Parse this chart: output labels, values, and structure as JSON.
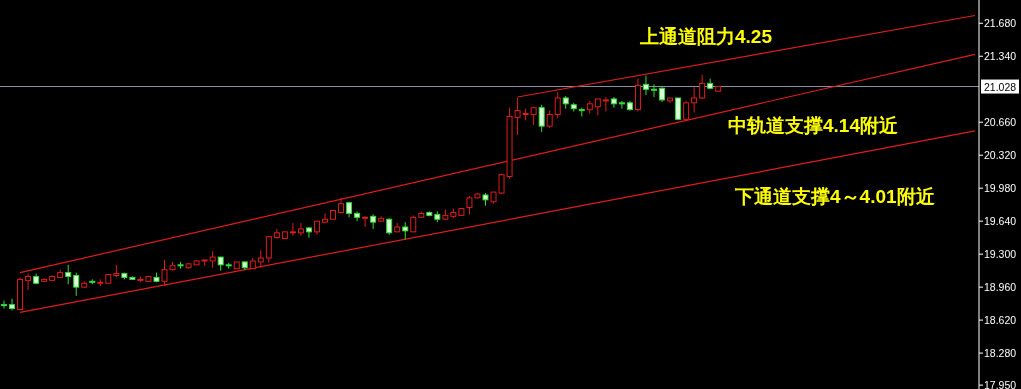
{
  "chart_data": {
    "type": "candlestick",
    "categories": [
      null,
      null,
      null,
      null,
      null,
      null,
      null,
      null,
      null,
      null,
      null,
      null,
      null,
      null,
      null,
      null,
      null,
      null,
      null,
      null,
      null,
      null,
      null,
      null,
      null,
      null,
      null,
      null,
      null,
      null,
      null,
      null,
      null,
      null,
      null,
      null,
      null,
      null,
      null,
      null,
      null,
      null,
      null,
      null,
      null,
      null,
      null,
      null,
      null,
      null,
      null,
      null,
      null,
      null,
      null,
      null,
      null,
      null,
      null,
      null,
      null,
      null,
      null,
      null,
      null,
      null,
      null,
      null,
      null,
      null,
      null,
      null,
      null,
      null,
      null,
      null,
      null,
      null,
      null,
      null,
      null,
      null,
      null,
      null,
      null,
      null,
      null,
      null,
      null,
      null,
      null,
      null,
      null,
      null,
      null,
      null,
      null,
      null,
      null,
      null,
      null,
      null,
      null,
      null,
      null,
      null,
      null,
      null,
      null,
      null,
      null,
      null,
      null,
      null,
      null,
      null,
      null,
      null,
      null,
      null,
      null,
      null
    ],
    "ohlc": [
      [
        18.78,
        18.82,
        18.74,
        18.77
      ],
      [
        18.78,
        18.84,
        18.72,
        18.74
      ],
      [
        18.73,
        19.06,
        18.72,
        19.04
      ],
      [
        19.03,
        19.1,
        18.93,
        19.07
      ],
      [
        19.07,
        19.1,
        18.99,
        19.0
      ],
      [
        19.02,
        19.05,
        19.01,
        19.04
      ],
      [
        19.03,
        19.08,
        19.03,
        19.07
      ],
      [
        19.06,
        19.14,
        19.06,
        19.11
      ],
      [
        19.11,
        19.19,
        18.99,
        19.07
      ],
      [
        19.08,
        19.11,
        18.87,
        18.96
      ],
      [
        18.96,
        19.02,
        18.95,
        19.0
      ],
      [
        19.02,
        19.04,
        18.99,
        19.01
      ],
      [
        19.0,
        19.04,
        18.97,
        19.01
      ],
      [
        19.0,
        19.09,
        19.0,
        19.09
      ],
      [
        19.08,
        19.19,
        19.06,
        19.1
      ],
      [
        19.1,
        19.11,
        19.04,
        19.06
      ],
      [
        19.06,
        19.07,
        19.04,
        19.04
      ],
      [
        19.03,
        19.07,
        19.01,
        19.04
      ],
      [
        19.02,
        19.07,
        19.02,
        19.07
      ],
      [
        19.06,
        19.11,
        19.01,
        19.02
      ],
      [
        19.02,
        19.24,
        18.97,
        19.14
      ],
      [
        19.14,
        19.22,
        19.13,
        19.18
      ],
      [
        19.19,
        19.22,
        19.15,
        19.18
      ],
      [
        19.16,
        19.21,
        19.15,
        19.2
      ],
      [
        19.19,
        19.24,
        19.19,
        19.23
      ],
      [
        19.23,
        19.24,
        19.18,
        19.24
      ],
      [
        19.23,
        19.33,
        19.16,
        19.27
      ],
      [
        19.27,
        19.27,
        19.13,
        19.19
      ],
      [
        19.19,
        19.21,
        19.15,
        19.18
      ],
      [
        19.15,
        19.22,
        19.15,
        19.22
      ],
      [
        19.22,
        19.22,
        19.14,
        19.16
      ],
      [
        19.15,
        19.26,
        19.15,
        19.23
      ],
      [
        19.22,
        19.34,
        19.16,
        19.26
      ],
      [
        19.26,
        19.48,
        19.21,
        19.48
      ],
      [
        19.47,
        19.56,
        19.46,
        19.52
      ],
      [
        19.46,
        19.53,
        19.46,
        19.53
      ],
      [
        19.52,
        19.62,
        19.49,
        19.53
      ],
      [
        19.52,
        19.62,
        19.49,
        19.56
      ],
      [
        19.57,
        19.58,
        19.47,
        19.53
      ],
      [
        19.53,
        19.64,
        19.5,
        19.64
      ],
      [
        19.63,
        19.72,
        19.62,
        19.66
      ],
      [
        19.66,
        19.75,
        19.66,
        19.75
      ],
      [
        19.73,
        19.88,
        19.72,
        19.82
      ],
      [
        19.83,
        19.84,
        19.68,
        19.72
      ],
      [
        19.72,
        19.74,
        19.64,
        19.68
      ],
      [
        19.67,
        19.69,
        19.58,
        19.68
      ],
      [
        19.69,
        19.71,
        19.56,
        19.63
      ],
      [
        19.64,
        19.69,
        19.64,
        19.67
      ],
      [
        19.66,
        19.67,
        19.5,
        19.52
      ],
      [
        19.53,
        19.62,
        19.53,
        19.58
      ],
      [
        19.58,
        19.63,
        19.45,
        19.54
      ],
      [
        19.53,
        19.7,
        19.53,
        19.68
      ],
      [
        19.68,
        19.74,
        19.68,
        19.72
      ],
      [
        19.73,
        19.74,
        19.69,
        19.7
      ],
      [
        19.71,
        19.74,
        19.63,
        19.66
      ],
      [
        19.66,
        19.76,
        19.65,
        19.7
      ],
      [
        19.69,
        19.77,
        19.67,
        19.73
      ],
      [
        19.7,
        19.77,
        19.7,
        19.77
      ],
      [
        19.78,
        19.9,
        19.71,
        19.88
      ],
      [
        19.88,
        19.93,
        19.88,
        19.92
      ],
      [
        19.91,
        19.93,
        19.8,
        19.86
      ],
      [
        19.84,
        19.94,
        19.82,
        19.94
      ],
      [
        19.93,
        20.13,
        19.92,
        20.12
      ],
      [
        20.1,
        20.81,
        20.08,
        20.72
      ],
      [
        20.71,
        20.91,
        20.53,
        20.78
      ],
      [
        20.75,
        20.8,
        20.68,
        20.75
      ],
      [
        20.74,
        20.82,
        20.63,
        20.81
      ],
      [
        20.81,
        20.84,
        20.56,
        20.62
      ],
      [
        20.62,
        20.78,
        20.6,
        20.74
      ],
      [
        20.74,
        20.97,
        20.7,
        20.91
      ],
      [
        20.91,
        20.93,
        20.8,
        20.85
      ],
      [
        20.84,
        20.86,
        20.77,
        20.8
      ],
      [
        20.79,
        20.81,
        20.72,
        20.78
      ],
      [
        20.79,
        20.88,
        20.75,
        20.85
      ],
      [
        20.82,
        20.9,
        20.73,
        20.9
      ],
      [
        20.89,
        20.92,
        20.77,
        20.89
      ],
      [
        20.9,
        20.92,
        20.81,
        20.85
      ],
      [
        20.86,
        20.88,
        20.8,
        20.85
      ],
      [
        20.86,
        20.88,
        20.78,
        20.79
      ],
      [
        20.79,
        21.11,
        20.77,
        21.04
      ],
      [
        21.05,
        21.14,
        20.94,
        21.0
      ],
      [
        21.0,
        21.05,
        20.92,
        20.99
      ],
      [
        21.01,
        21.02,
        20.87,
        20.89
      ],
      [
        20.88,
        20.91,
        20.86,
        20.91
      ],
      [
        20.91,
        20.91,
        20.68,
        20.69
      ],
      [
        20.69,
        20.88,
        20.67,
        20.86
      ],
      [
        20.86,
        21.02,
        20.76,
        20.91
      ],
      [
        20.91,
        21.15,
        20.9,
        21.06
      ],
      [
        21.06,
        21.11,
        21.0,
        21.01
      ],
      [
        20.98,
        21.03,
        20.98,
        21.03
      ],
      null,
      null,
      null,
      null,
      null,
      null,
      null,
      null,
      null,
      null,
      null,
      null,
      null,
      null,
      null,
      null,
      null,
      null,
      null,
      null,
      null,
      null,
      null,
      null,
      null,
      null,
      null,
      null,
      null,
      null,
      null,
      null
    ],
    "series": [
      {
        "type": "line",
        "color": "#e01c1c",
        "values": [
          null,
          null,
          null,
          null,
          null,
          null,
          null,
          null,
          null,
          null,
          null,
          null,
          null,
          null,
          null,
          null,
          null,
          null,
          null,
          null,
          null,
          null,
          null,
          null,
          null,
          null,
          null,
          null,
          null,
          null,
          null,
          null,
          null,
          null,
          null,
          null,
          null,
          null,
          null,
          null,
          null,
          null,
          null,
          null,
          null,
          null,
          null,
          null,
          null,
          null,
          null,
          null,
          null,
          null,
          null,
          null,
          null,
          null,
          null,
          null,
          null,
          null,
          null,
          null,
          20.92,
          null,
          null,
          null,
          null,
          null,
          null,
          null,
          null,
          null,
          null,
          null,
          null,
          null,
          null,
          null,
          null,
          null,
          null,
          null,
          null,
          null,
          null,
          null,
          null,
          null,
          null,
          null,
          null,
          null,
          null,
          null,
          null,
          null,
          null,
          null,
          null,
          null,
          null,
          null,
          null,
          null,
          null,
          null,
          null,
          null,
          null,
          null,
          null,
          null,
          null,
          null,
          null,
          null,
          null,
          null,
          null,
          21.76
        ]
      },
      {
        "type": "line",
        "color": "#e01c1c",
        "values": [
          null,
          null,
          19.11,
          null,
          null,
          null,
          null,
          null,
          null,
          null,
          null,
          null,
          null,
          null,
          null,
          null,
          null,
          null,
          null,
          null,
          null,
          null,
          null,
          null,
          null,
          null,
          null,
          null,
          null,
          null,
          null,
          null,
          null,
          null,
          null,
          null,
          null,
          null,
          null,
          null,
          null,
          null,
          null,
          null,
          null,
          null,
          null,
          null,
          null,
          null,
          null,
          null,
          null,
          null,
          null,
          null,
          null,
          null,
          null,
          null,
          null,
          null,
          null,
          null,
          null,
          null,
          null,
          null,
          null,
          null,
          null,
          null,
          null,
          null,
          null,
          null,
          null,
          null,
          null,
          null,
          null,
          null,
          null,
          null,
          null,
          null,
          null,
          null,
          null,
          null,
          null,
          null,
          null,
          null,
          null,
          null,
          null,
          null,
          null,
          null,
          null,
          null,
          null,
          null,
          null,
          null,
          null,
          null,
          null,
          null,
          null,
          null,
          null,
          null,
          null,
          null,
          null,
          null,
          null,
          null,
          null,
          21.36
        ]
      },
      {
        "type": "line",
        "color": "#e01c1c",
        "values": [
          null,
          null,
          18.7,
          null,
          null,
          null,
          null,
          null,
          null,
          null,
          null,
          null,
          null,
          null,
          null,
          null,
          null,
          null,
          null,
          null,
          null,
          null,
          null,
          null,
          null,
          null,
          null,
          null,
          null,
          null,
          null,
          null,
          null,
          null,
          null,
          null,
          null,
          null,
          null,
          null,
          null,
          null,
          null,
          null,
          null,
          null,
          null,
          null,
          null,
          null,
          null,
          null,
          null,
          null,
          null,
          null,
          null,
          null,
          null,
          null,
          null,
          null,
          null,
          null,
          null,
          null,
          null,
          null,
          null,
          null,
          null,
          null,
          null,
          null,
          null,
          null,
          null,
          null,
          null,
          null,
          null,
          null,
          null,
          null,
          null,
          null,
          null,
          null,
          null,
          null,
          null,
          null,
          null,
          null,
          null,
          null,
          null,
          null,
          null,
          null,
          null,
          null,
          null,
          null,
          null,
          null,
          null,
          null,
          null,
          null,
          null,
          null,
          null,
          null,
          null,
          null,
          null,
          null,
          null,
          null,
          null,
          20.57
        ]
      }
    ],
    "ylim": [
      17.91,
      21.92
    ],
    "yticks": [
      {
        "value": 21.68,
        "label": "21.680"
      },
      {
        "value": 21.34,
        "label": "21.340"
      },
      {
        "value": 20.66,
        "label": "20.660"
      },
      {
        "value": 20.32,
        "label": "20.320"
      },
      {
        "value": 19.98,
        "label": "19.980"
      },
      {
        "value": 19.64,
        "label": "19.640"
      },
      {
        "value": 19.3,
        "label": "19.300"
      },
      {
        "value": 18.96,
        "label": "18.960"
      },
      {
        "value": 18.62,
        "label": "18.620"
      },
      {
        "value": 18.28,
        "label": "18.280"
      },
      {
        "value": 17.95,
        "label": "17.950"
      }
    ],
    "ref_lines": [
      {
        "axis": "y",
        "value": 21.028,
        "label": "21.028",
        "color": "#8a90a8"
      }
    ],
    "tick_labels": "y",
    "annotations": [
      "上通道阻力4.25",
      "中轨道支撑4.14附近",
      "下通道支撑4～4.01附近"
    ]
  }
}
